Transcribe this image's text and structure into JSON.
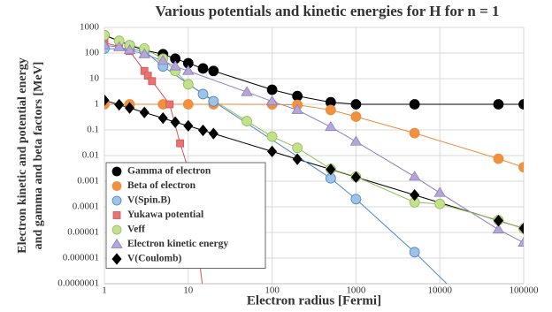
{
  "chart_data": {
    "type": "line",
    "title": "Various potentials and kinetic energies for H for n = 1",
    "xlabel": "Electron radius [Fermi]",
    "ylabel": [
      "Electron kinetic and potential energy",
      "and gamma and beta factors   [MeV]"
    ],
    "log_x": true,
    "log_y": true,
    "grid": true,
    "legend": "lower left",
    "xlim": [
      1,
      100000
    ],
    "xticks": [
      1,
      10,
      100,
      1000,
      10000,
      100000
    ],
    "ylim": [
      1e-07,
      1000
    ],
    "yticks": [
      1000,
      100,
      10,
      1,
      0.1,
      0.01,
      0.001,
      0.0001,
      1e-05,
      1e-06,
      {
        "value": 1e-07,
        "label": "0.0000001"
      }
    ],
    "series": [
      {
        "name": "Gamma of electron",
        "color": "#000000",
        "fill": "#000000",
        "marker": "circle",
        "x": [
          1,
          2,
          3,
          5,
          7,
          10,
          15,
          20,
          100,
          200,
          500,
          1000,
          5000,
          50000,
          100000
        ],
        "values": [
          500,
          200,
          130,
          90,
          60,
          40,
          25,
          20,
          3.7,
          2.1,
          1.2,
          1,
          1,
          1,
          1
        ]
      },
      {
        "name": "Beta of electron",
        "color": "#ed8a3a",
        "fill": "#f0913f",
        "marker": "circle",
        "x": [
          1,
          2,
          5,
          10,
          20,
          100,
          200,
          500,
          1000,
          5000,
          50000,
          100000
        ],
        "values": [
          1,
          1,
          1,
          1,
          1,
          0.99,
          0.95,
          0.6,
          0.33,
          0.075,
          0.0075,
          0.0035
        ]
      },
      {
        "name": "V(Spin.B)",
        "color": "#4a86c8",
        "fill": "#9dc3e6",
        "marker": "circle",
        "x": [
          1,
          2,
          3,
          5,
          15,
          20,
          500,
          1000,
          5000,
          20000
        ],
        "values": [
          150,
          140,
          120,
          30,
          2.5,
          1.3,
          0.0013,
          0.0002,
          1.7e-06,
          2e-08
        ]
      },
      {
        "name": "Yukawa potential",
        "color": "#d9534f",
        "fill": "#e57373",
        "marker": "square",
        "x": [
          1,
          1.5,
          2,
          3,
          3.3,
          3.7,
          6,
          8,
          10,
          16
        ],
        "values": [
          250,
          180,
          120,
          20,
          13,
          8,
          1,
          0.03,
          0.003,
          1e-08
        ]
      },
      {
        "name": "Veff",
        "color": "#8fbf5a",
        "fill": "#c5e08a",
        "marker": "circle",
        "x": [
          1,
          1.5,
          2,
          3,
          5,
          7,
          10,
          50,
          100,
          200,
          500,
          1000,
          5000,
          10000,
          50000,
          100000
        ],
        "values": [
          500,
          300,
          200,
          150,
          60,
          20,
          6,
          0.22,
          0.055,
          0.02,
          0.003,
          0.0015,
          0.00015,
          0.00013,
          3e-05,
          1.4e-05
        ]
      },
      {
        "name": "Electron kinetic energy",
        "color": "#8e7cc3",
        "fill": "#b4a7d6",
        "marker": "triangle",
        "x": [
          1,
          1.5,
          2,
          3,
          5,
          7,
          10,
          50,
          100,
          200,
          500,
          1000,
          5000,
          10000,
          50000,
          100000
        ],
        "values": [
          200,
          170,
          130,
          90,
          50,
          30,
          20,
          3,
          1.3,
          0.6,
          0.13,
          0.035,
          0.0015,
          0.00035,
          1.3e-05,
          4e-06
        ]
      },
      {
        "name": "V(Coulomb)",
        "color": "#000000",
        "fill": "#000000",
        "marker": "diamond",
        "x": [
          1,
          1.5,
          2,
          3,
          5,
          7,
          10,
          15,
          20,
          100,
          200,
          500,
          1000,
          5000,
          50000,
          100000
        ],
        "values": [
          1.44,
          0.96,
          0.72,
          0.48,
          0.29,
          0.2,
          0.144,
          0.096,
          0.072,
          0.0144,
          0.0072,
          0.0029,
          0.00144,
          0.00029,
          2.9e-05,
          1.44e-05
        ]
      }
    ]
  }
}
